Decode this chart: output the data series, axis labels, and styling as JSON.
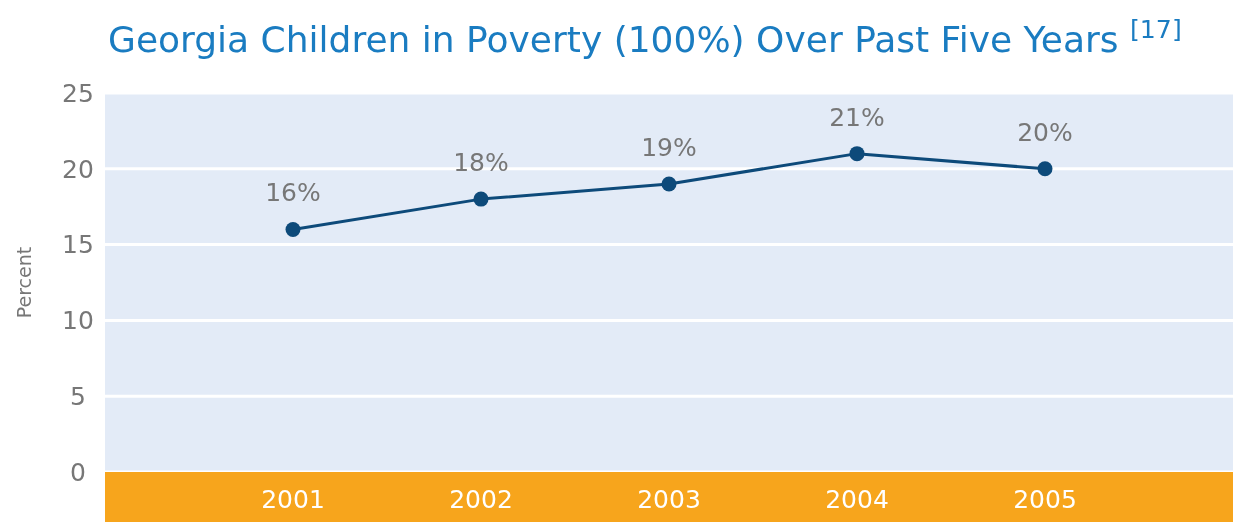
{
  "chart_data": {
    "type": "line",
    "title": "Georgia Children in Poverty (100%) Over Past Five Years $^{[17]}$",
    "ylabel": "Percent",
    "categories": [
      "2001",
      "2002",
      "2003",
      "2004",
      "2005"
    ],
    "series": [
      {
        "color": "#0d4a7a",
        "values": [
          16,
          18,
          19,
          21,
          20
        ],
        "value_labels": [
          "16%",
          "18%",
          "19%",
          "21%",
          "20%"
        ]
      }
    ],
    "ylim": [
      0,
      25
    ],
    "yticks": [
      0,
      5,
      10,
      15,
      20,
      25
    ],
    "grid": "y",
    "marker": "circle"
  }
}
